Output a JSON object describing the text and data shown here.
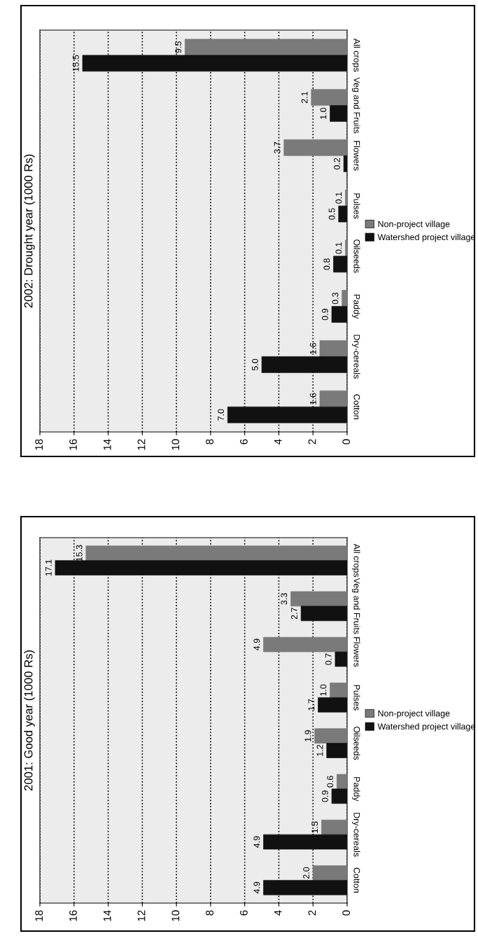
{
  "chart_data": [
    {
      "type": "bar",
      "orientation": "horizontal",
      "title": "2002: Drought year (1000 Rs)",
      "categories": [
        "All crops",
        "Veg and Fruits",
        "Flowers",
        "Pulses",
        "Oilseeds",
        "Paddy",
        "Dry-cereals",
        "Cotton"
      ],
      "series": [
        {
          "name": "Non-project village",
          "color": "#7a7a7a",
          "values": [
            9.5,
            2.1,
            3.7,
            0.1,
            0.1,
            0.3,
            1.6,
            1.6
          ],
          "value_labels": [
            "9.5",
            "2.1",
            "3.7",
            "0.1",
            "0.1",
            "0.3",
            "1.6",
            "1.6"
          ]
        },
        {
          "name": "Watershed project village",
          "color": "#111111",
          "values": [
            15.5,
            1.0,
            0.2,
            0.5,
            0.8,
            0.9,
            5.0,
            7.0
          ],
          "value_labels": [
            "15.5",
            "1.0",
            "0.2",
            "0.5",
            "0.8",
            "0.9",
            "5.0",
            "7.0"
          ]
        }
      ],
      "xlim": [
        18,
        0
      ],
      "xticks": [
        0,
        2,
        4,
        6,
        8,
        10,
        12,
        14,
        16,
        18
      ],
      "grid": "x",
      "line_style": "dotted",
      "legend": "right"
    },
    {
      "type": "bar",
      "orientation": "horizontal",
      "title": "2001: Good year (1000 Rs)",
      "categories": [
        "All crops",
        "Veg and Fruits",
        "Flowers",
        "Pulses",
        "Oilseeds",
        "Paddy",
        "Dry-cereals",
        "Cotton"
      ],
      "series": [
        {
          "name": "Non-project village",
          "color": "#7a7a7a",
          "values": [
            15.3,
            3.3,
            4.9,
            1.0,
            1.9,
            0.6,
            1.5,
            2.0
          ],
          "value_labels": [
            "15.3",
            "3.3",
            "4.9",
            "1.0",
            "1.9",
            "0.6",
            "1.5",
            "2.0"
          ]
        },
        {
          "name": "Watershed project village",
          "color": "#111111",
          "values": [
            17.1,
            2.7,
            0.7,
            1.7,
            1.2,
            0.9,
            4.9,
            4.9
          ],
          "value_labels": [
            "17.1",
            "2.7",
            "0.7",
            "1.7",
            "1.2",
            "0.9",
            "4.9",
            "4.9"
          ]
        }
      ],
      "xlim": [
        18,
        0
      ],
      "xticks": [
        0,
        2,
        4,
        6,
        8,
        10,
        12,
        14,
        16,
        18
      ],
      "grid": "x",
      "line_style": "dotted",
      "legend": "right"
    }
  ]
}
